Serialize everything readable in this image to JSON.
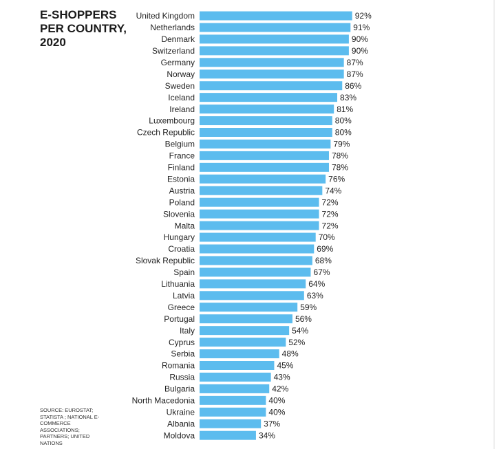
{
  "chart_data": {
    "type": "bar",
    "orientation": "horizontal",
    "title": "E-SHOPPERS PER COUNTRY, 2020",
    "source": "SOURCE: EUROSTAT; STATISTA ; NATIONAL E-COMMERCE ASSOCIATIONS; PARTNERS; UNITED NATIONS",
    "color": "#5cbcee",
    "categories": [
      "United Kingdom",
      "Netherlands",
      "Denmark",
      "Switzerland",
      "Germany",
      "Norway",
      "Sweden",
      "Iceland",
      "Ireland",
      "Luxembourg",
      "Czech Republic",
      "Belgium",
      "France",
      "Finland",
      "Estonia",
      "Austria",
      "Poland",
      "Slovenia",
      "Malta",
      "Hungary",
      "Croatia",
      "Slovak Republic",
      "Spain",
      "Lithuania",
      "Latvia",
      "Greece",
      "Portugal",
      "Italy",
      "Cyprus",
      "Serbia",
      "Romania",
      "Russia",
      "Bulgaria",
      "North Macedonia",
      "Ukraine",
      "Albania",
      "Moldova"
    ],
    "values": [
      92,
      91,
      90,
      90,
      87,
      87,
      86,
      83,
      81,
      80,
      80,
      79,
      78,
      78,
      76,
      74,
      72,
      72,
      72,
      70,
      69,
      68,
      67,
      64,
      63,
      59,
      56,
      54,
      52,
      48,
      45,
      43,
      42,
      40,
      40,
      37,
      34
    ],
    "value_labels": [
      "92%",
      "91%",
      "90%",
      "90%",
      "87%",
      "87%",
      "86%",
      "83%",
      "81%",
      "80%",
      "80%",
      "79%",
      "78%",
      "78%",
      "76%",
      "74%",
      "72%",
      "72%",
      "72%",
      "70%",
      "69%",
      "68%",
      "67%",
      "64%",
      "63%",
      "59%",
      "56%",
      "54%",
      "52%",
      "48%",
      "45%",
      "43%",
      "42%",
      "40%",
      "40%",
      "37%",
      "34%"
    ]
  }
}
